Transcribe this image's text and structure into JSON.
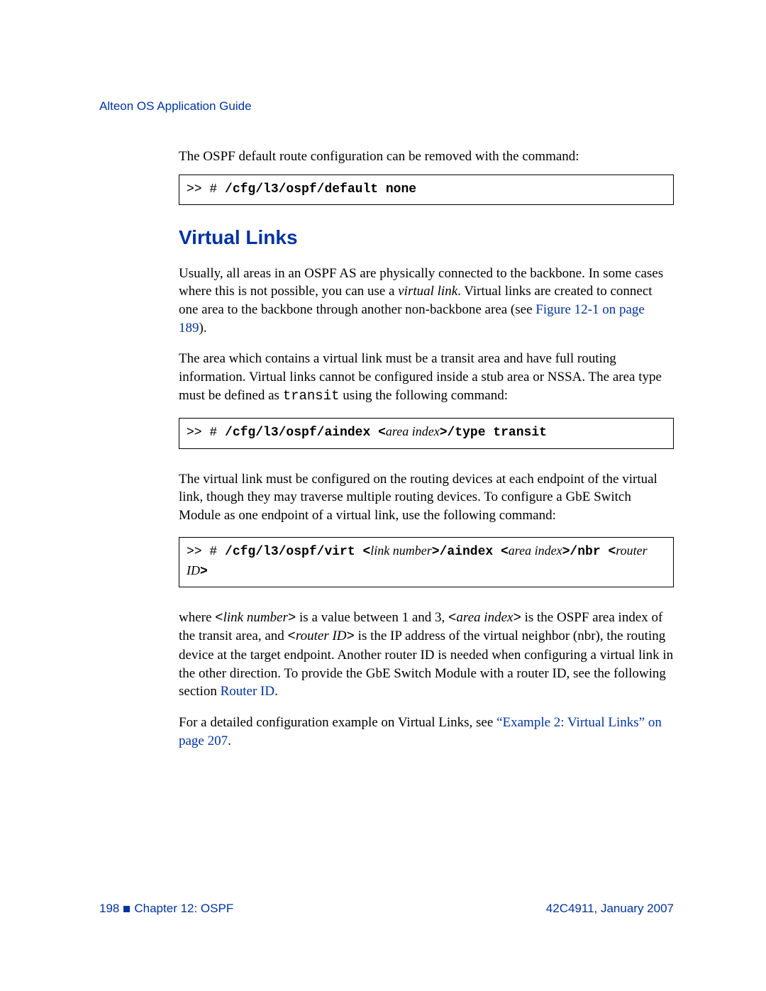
{
  "colors": {
    "brand_blue": "#0033a0",
    "text": "#000000",
    "background": "#ffffff",
    "border": "#000000"
  },
  "typography": {
    "body_family": "Times New Roman",
    "body_size_pt": 14,
    "heading_family": "Segoe UI",
    "heading_size_pt": 21,
    "mono_family": "Courier New",
    "header_footer_size_pt": 13
  },
  "header": {
    "title": "Alteon OS Application Guide"
  },
  "intro": {
    "text": "The OSPF default route configuration can be removed with the command:"
  },
  "codebox1": {
    "prefix": ">> # ",
    "cmd": "/cfg/l3/ospf/default none"
  },
  "section": {
    "heading": "Virtual Links",
    "p1a": "Usually, all areas in an OSPF AS are physically connected to the backbone. In some cases where this is not possible, you can use a ",
    "p1_ital": "virtual link",
    "p1b": ". Virtual links are created to connect one area to the backbone through another non-backbone area (see ",
    "p1_link": "Figure 12-1 on page 189",
    "p1c": ").",
    "p2a": "The area which contains a virtual link must be a transit area and have full routing information. Virtual links cannot be configured inside a stub area or NSSA. The area type must be defined as ",
    "p2_mono": "transit",
    "p2b": " using the following command:"
  },
  "codebox2": {
    "prefix": ">> # ",
    "cmd1": "/cfg/l3/ospf/aindex ",
    "arg_open": "<",
    "arg1": "area index",
    "arg_close": ">",
    "cmd2": "/type transit"
  },
  "section2": {
    "p3": "The virtual link must be configured on the routing devices at each endpoint of the virtual link, though they may traverse multiple routing devices. To configure a GbE Switch Module as one endpoint of a virtual link, use the following command:"
  },
  "codebox3": {
    "prefix": ">> # ",
    "cmd1": "/cfg/l3/ospf/virt ",
    "lt": "<",
    "arg1": "link number",
    "gt": ">",
    "cmd2": "/aindex ",
    "arg2": "area index",
    "cmd3": "/nbr ",
    "arg3": "router ID"
  },
  "section3": {
    "p4a": "where ",
    "p4_arg1_open": "<",
    "p4_arg1": "link number",
    "p4_arg1_close": ">",
    "p4b": " is a value between 1 and 3, ",
    "p4_arg2_open": "<",
    "p4_arg2": "area index",
    "p4_arg2_close": ">",
    "p4c": " is the OSPF area index of the transit area, and ",
    "p4_arg3_open": "<",
    "p4_arg3": "router ID",
    "p4_arg3_close": ">",
    "p4d": " is the IP address of the virtual neighbor (nbr), the routing device at the target endpoint. Another router ID is needed when configuring a virtual link in the other direction. To provide the GbE Switch Module with a router ID, see the following section ",
    "p4_link": "Router ID",
    "p4e": ".",
    "p5a": "For a detailed configuration example on Virtual Links, see ",
    "p5_link": "“Example 2: Virtual Links” on page 207",
    "p5b": "."
  },
  "footer": {
    "page": "198",
    "chapter": "Chapter 12:  OSPF",
    "docref": "42C4911, January 2007"
  }
}
